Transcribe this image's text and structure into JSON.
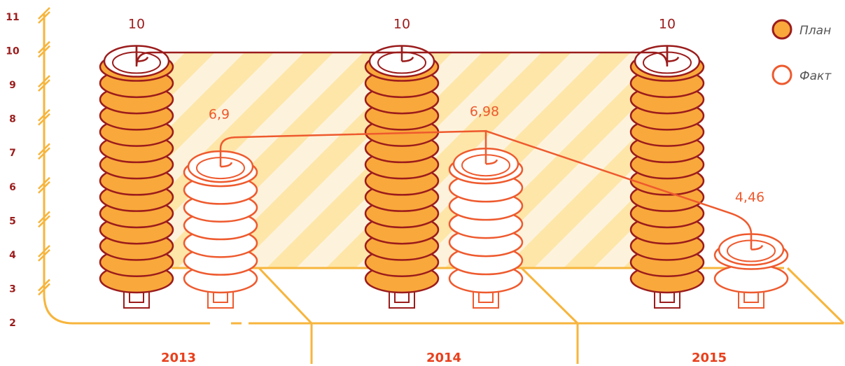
{
  "chart_data": {
    "type": "bar",
    "categories": [
      "2013",
      "2014",
      "2015"
    ],
    "series": [
      {
        "name": "План",
        "color": "#f9a83b",
        "values": [
          10,
          10,
          10
        ]
      },
      {
        "name": "Факт",
        "color": "#ee5a2e",
        "values": [
          6.9,
          6.98,
          4.46
        ],
        "value_labels": [
          "6,9",
          "6,98",
          "4,46"
        ]
      }
    ],
    "ylim": [
      2,
      11
    ],
    "yticks": [
      2,
      3,
      4,
      5,
      6,
      7,
      8,
      9,
      10,
      11
    ],
    "legend": "top-right"
  }
}
